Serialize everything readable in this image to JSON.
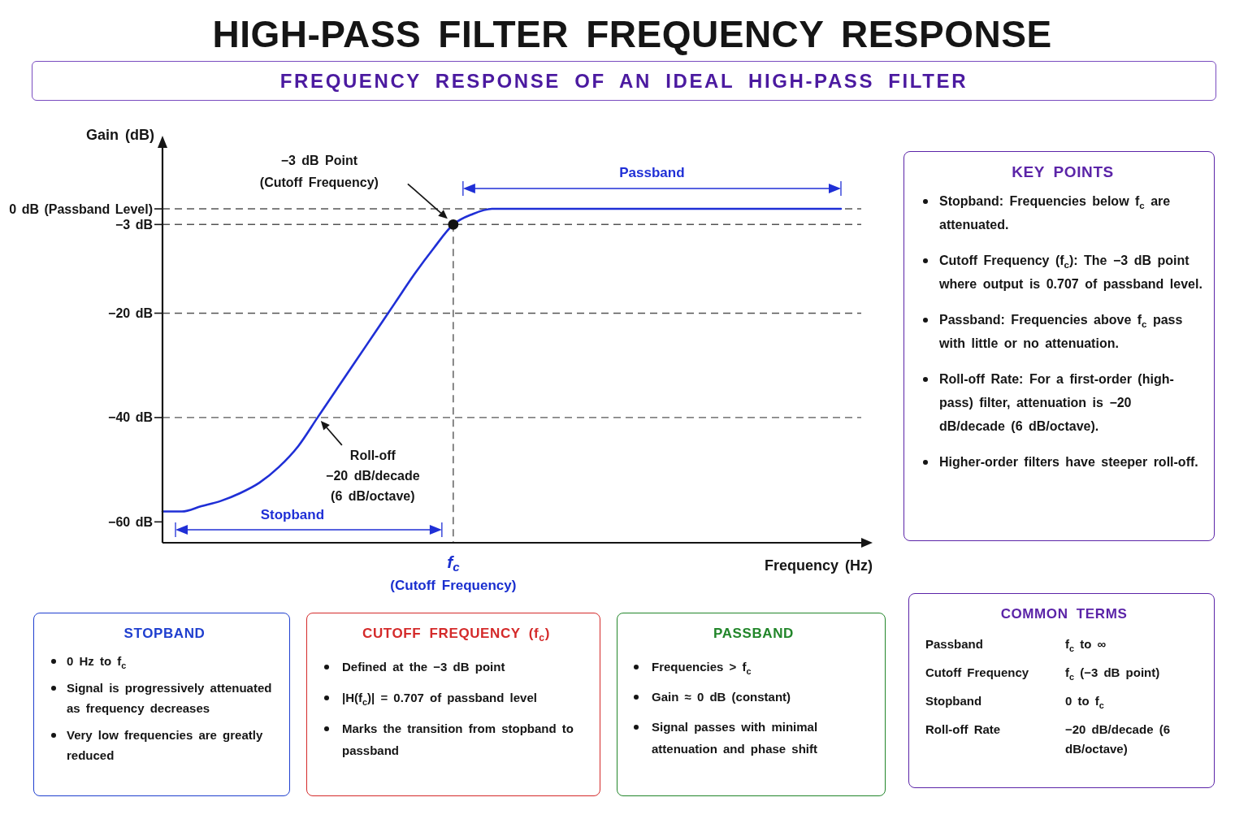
{
  "chart_data": [
    {
      "type": "line",
      "title": "HIGH-PASS FILTER FREQUENCY RESPONSE",
      "subtitle": "FREQUENCY RESPONSE OF AN IDEAL HIGH-PASS FILTER",
      "xlabel": "Frequency (Hz)",
      "ylabel": "Gain (dB)",
      "categories": [
        null,
        null,
        null,
        null,
        null,
        null,
        null,
        null,
        null,
        null,
        null,
        null,
        null,
        null,
        null,
        "f$_{c}$",
        null,
        null,
        null,
        null,
        null,
        null,
        null,
        null,
        null,
        null,
        null,
        null,
        null,
        null,
        null,
        null,
        null,
        null,
        null,
        null
      ],
      "series": [
        {
          "type": "line",
          "color": "#1f2fd6",
          "values": [
            -58,
            -58,
            -57,
            -56,
            -54.5,
            -52.5,
            -49.5,
            -45.5,
            -40,
            -34.5,
            -29,
            -23.5,
            -18,
            -12.5,
            -7.5,
            -3,
            -1,
            0,
            0,
            0,
            0,
            0,
            0,
            0,
            0,
            0,
            0,
            0,
            0,
            0,
            0,
            0,
            0,
            0,
            0,
            0
          ]
        },
        {
          "type": "scatter",
          "color": "#111111",
          "x": [
            "f$_{c}$"
          ],
          "values": [
            -3
          ],
          "marker": "circle"
        }
      ],
      "ylim": [
        -64,
        12
      ],
      "yticks": [
        {
          "value": 0,
          "label": "0 dB (Passband Level)"
        },
        {
          "value": -3,
          "label": "−3 dB"
        },
        {
          "value": -20,
          "label": "−20 dB"
        },
        {
          "value": -40,
          "label": "−40 dB"
        },
        {
          "value": -60,
          "label": "−60 dB"
        }
      ],
      "ref_lines": [
        {
          "axis": "y",
          "value": 0,
          "color": "#555555",
          "line_style": "dashed"
        },
        {
          "axis": "y",
          "value": -3,
          "color": "#555555",
          "line_style": "dashed"
        },
        {
          "axis": "y",
          "value": -20,
          "color": "#555555",
          "line_style": "dashed"
        },
        {
          "axis": "y",
          "value": -40,
          "color": "#555555",
          "line_style": "dashed"
        },
        {
          "axis": "x",
          "value": "f$_{c}$",
          "color": "#555555",
          "line_style": "dashed"
        }
      ],
      "annotations": [
        "−3 dB Point\n(Cutoff Frequency)",
        "Roll-off\n−20 dB/decade\n(6 dB/octave)",
        "Passband",
        "Stopband",
        "(Cutoff Frequency)"
      ]
    },
    {
      "type": "other",
      "title": "KEY POINTS",
      "color": "#5b24a8",
      "annotations": [
        "Stopband: Frequencies below f$_{c}$ are attenuated.",
        "Cutoff Frequency (f$_{c}$): The −3 dB point where output is 0.707 of passband level.",
        "Passband: Frequencies above f$_{c}$ pass with little or no attenuation.",
        "Roll-off Rate: For a first-order (high-pass) filter, attenuation is −20 dB/decade (6 dB/octave).",
        "Higher-order filters have steeper roll-off."
      ]
    },
    {
      "type": "other",
      "title": "STOPBAND",
      "color": "#1f3fcf",
      "annotations": [
        "0 Hz to f$_{c}$",
        "Signal is progressively attenuated as frequency decreases",
        "Very low frequencies are greatly reduced"
      ]
    },
    {
      "type": "other",
      "title": "CUTOFF FREQUENCY (f$_{c}$)",
      "color": "#d42a2a",
      "annotations": [
        "Defined at the −3 dB point",
        "|H(f$_{c}$)| = 0.707 of passband level",
        "Marks the transition from stopband to passband"
      ]
    },
    {
      "type": "other",
      "title": "PASSBAND",
      "color": "#22862a",
      "annotations": [
        "Frequencies > f$_{c}$",
        "Gain ≈ 0 dB (constant)",
        "Signal passes with minimal attenuation and phase shift"
      ]
    },
    {
      "type": "other",
      "title": "COMMON TERMS",
      "color": "#5b24a8",
      "categories": [
        "Passband",
        "Cutoff Frequency",
        "Stopband",
        "Roll-off Rate"
      ],
      "annotations": [
        "f$_{c}$ to ∞",
        "f$_{c}$ (−3 dB point)",
        "0 to f$_{c}$",
        "−20 dB/decade (6 dB/octave)"
      ]
    }
  ]
}
